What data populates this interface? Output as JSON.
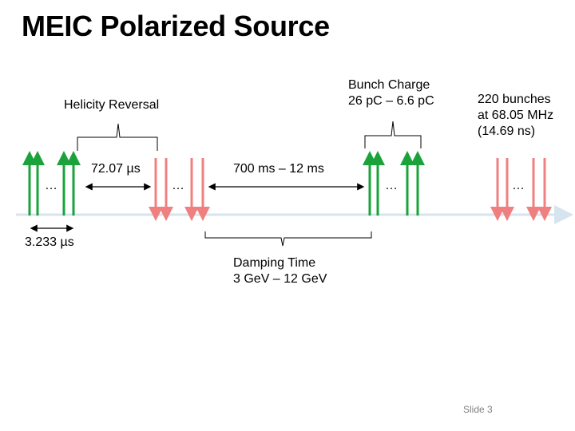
{
  "title": "MEIC Polarized Source",
  "labels": {
    "bunch_charge_line1": "Bunch Charge",
    "bunch_charge_line2": "26 pC – 6.6 pC",
    "helicity_reversal": "Helicity Reversal",
    "bunches_line1": "220 bunches",
    "bunches_line2": "at 68.05 MHz",
    "bunches_line3": "(14.69 ns)",
    "period_72": "72.07 µs",
    "period_700": "700 ms – 12 ms",
    "spacing_3233": "3.233 µs",
    "damping_line1": "Damping Time",
    "damping_line2": "3 GeV – 12 GeV"
  },
  "ellipsis": "…",
  "slide_number": "Slide 3",
  "colors": {
    "spin_up": "#1aa33a",
    "spin_down": "#f08080",
    "timeline": "#d6e4f0",
    "brace": "#000000"
  }
}
